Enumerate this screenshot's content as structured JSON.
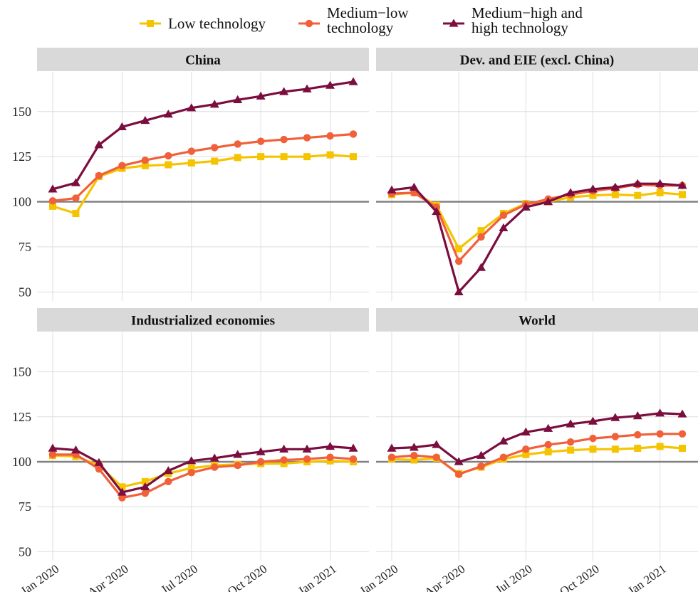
{
  "legend": [
    {
      "name_lines": [
        "Low technology"
      ],
      "color": "#F5C400",
      "marker": "square"
    },
    {
      "name_lines": [
        "Medium−low",
        "technology"
      ],
      "color": "#F0603A",
      "marker": "circle"
    },
    {
      "name_lines": [
        "Medium−high and",
        "high technology"
      ],
      "color": "#7B0D3F",
      "marker": "triangle"
    }
  ],
  "chart_data": {
    "type": "line",
    "x": [
      "2020-01",
      "2020-02",
      "2020-03",
      "2020-04",
      "2020-05",
      "2020-06",
      "2020-07",
      "2020-08",
      "2020-09",
      "2020-10",
      "2020-11",
      "2020-12",
      "2021-01",
      "2021-02"
    ],
    "x_tick_labels": [
      "Jan 2020",
      "Apr 2020",
      "Jul 2020",
      "Oct 2020",
      "Jan 2021"
    ],
    "x_tick_positions": [
      "2020-01",
      "2020-04",
      "2020-07",
      "2020-10",
      "2021-01"
    ],
    "y_ticks": [
      50,
      75,
      100,
      125,
      150
    ],
    "ylim": [
      45,
      172
    ],
    "reference_line": 100,
    "grid": true,
    "legend_position": "top",
    "panels": [
      {
        "title": "China",
        "series": [
          {
            "name": "Low technology",
            "values": [
              97.5,
              93.5,
              114,
              118.5,
              120,
              120.5,
              121.5,
              122.5,
              124.5,
              125,
              125,
              125,
              126,
              125
            ]
          },
          {
            "name": "Medium−low technology",
            "values": [
              100.5,
              102,
              114.5,
              120,
              123,
              125.5,
              128,
              130,
              132,
              133.5,
              134.5,
              135.5,
              136.5,
              137.5
            ]
          },
          {
            "name": "Medium−high and high technology",
            "values": [
              107,
              110.5,
              131.5,
              141.5,
              145,
              148.5,
              152,
              154,
              156.5,
              158.5,
              161,
              162.5,
              164.5,
              166.5
            ]
          }
        ]
      },
      {
        "title": "Dev. and EIE (excl. China)",
        "series": [
          {
            "name": "Low technology",
            "values": [
              104,
              105,
              98,
              74,
              84,
              93.5,
              99,
              100,
              102.5,
              103.5,
              104,
              103.5,
              105,
              104
            ]
          },
          {
            "name": "Medium−low technology",
            "values": [
              104.5,
              105,
              97,
              67,
              80.5,
              92.5,
              98.5,
              101.5,
              104,
              106,
              107.5,
              109.5,
              109,
              109
            ]
          },
          {
            "name": "Medium−high and high technology",
            "values": [
              106.5,
              108,
              94.5,
              50,
              63.5,
              85.5,
              97,
              100,
              105,
              107,
              108,
              110,
              110,
              109
            ]
          }
        ]
      },
      {
        "title": "Industrialized economies",
        "series": [
          {
            "name": "Low technology",
            "values": [
              103.5,
              103,
              98,
              86,
              89,
              93.5,
              96.5,
              98,
              98.5,
              99,
              99,
              100,
              100.5,
              100
            ]
          },
          {
            "name": "Medium−low technology",
            "values": [
              104,
              104,
              96,
              80,
              82.5,
              89,
              94,
              97,
              98,
              100,
              101,
              101.5,
              102.5,
              101.5
            ]
          },
          {
            "name": "Medium−high and high technology",
            "values": [
              107.5,
              106.5,
              99.5,
              83,
              86,
              95,
              100.5,
              102,
              104,
              105.5,
              107,
              107,
              108.5,
              107.5
            ]
          }
        ]
      },
      {
        "title": "World",
        "series": [
          {
            "name": "Low technology",
            "values": [
              101.5,
              101,
              102,
              93.5,
              97,
              101.5,
              104,
              105.5,
              106.5,
              107,
              107,
              107.5,
              108.5,
              107.5
            ]
          },
          {
            "name": "Medium−low technology",
            "values": [
              102.5,
              103.5,
              102.5,
              93,
              97.5,
              102.5,
              107,
              109.5,
              111,
              113,
              114,
              115,
              115.5,
              115.5
            ]
          },
          {
            "name": "Medium−high and high technology",
            "values": [
              107.5,
              108,
              109.5,
              100,
              103.5,
              111.5,
              116.5,
              118.5,
              121,
              122.5,
              124.5,
              125.5,
              127,
              126.5
            ]
          }
        ]
      }
    ]
  }
}
